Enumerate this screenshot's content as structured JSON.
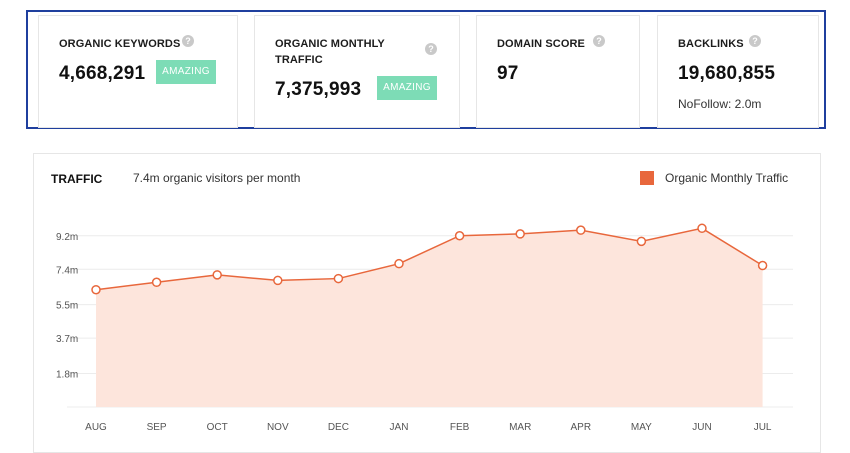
{
  "stats": [
    {
      "label_lines": [
        "ORGANIC KEYWORDS"
      ],
      "value": "4,668,291",
      "badge": "AMAZING"
    },
    {
      "label_lines": [
        "ORGANIC MONTHLY",
        "TRAFFIC"
      ],
      "value": "7,375,993",
      "badge": "AMAZING"
    },
    {
      "label_lines": [
        "DOMAIN SCORE"
      ],
      "value": "97"
    },
    {
      "label_lines": [
        "BACKLINKS"
      ],
      "value": "19,680,855",
      "sub": "NoFollow: 2.0m"
    }
  ],
  "help_glyph": "?",
  "traffic": {
    "title": "TRAFFIC",
    "subtitle": "7.4m organic visitors per month",
    "legend_label": "Organic Monthly Traffic"
  },
  "colors": {
    "frame": "#1f3f9e",
    "badge": "#7ddcb6",
    "series": "#e8673c",
    "area": "#fde5dc"
  },
  "chart_data": {
    "type": "area",
    "categories": [
      "AUG",
      "SEP",
      "OCT",
      "NOV",
      "DEC",
      "JAN",
      "FEB",
      "MAR",
      "APR",
      "MAY",
      "JUN",
      "JUL"
    ],
    "y_tick_labels": [
      "9.2m",
      "7.4m",
      "5.5m",
      "3.7m",
      "1.8m"
    ],
    "y_ticks": [
      9.2,
      7.4,
      5.5,
      3.7,
      1.8
    ],
    "ylim": [
      0,
      10.1
    ],
    "series": [
      {
        "name": "Organic Monthly Traffic",
        "values": [
          6.3,
          6.7,
          7.1,
          6.8,
          6.9,
          7.7,
          9.2,
          9.3,
          9.5,
          8.9,
          9.6,
          7.6
        ]
      }
    ],
    "grid": true,
    "legend": "top-right"
  }
}
